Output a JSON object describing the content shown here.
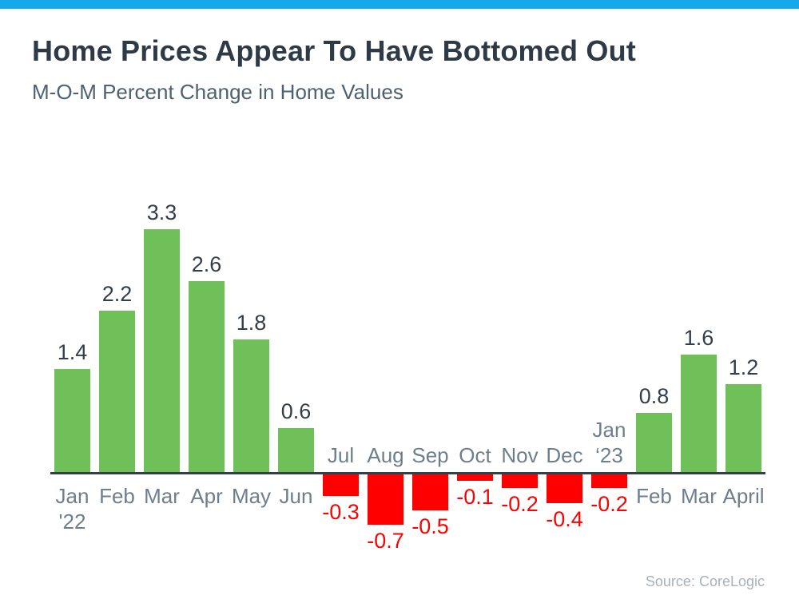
{
  "chart_data": {
    "type": "bar",
    "title": "Home Prices Appear To Have Bottomed Out",
    "subtitle": "M-O-M Percent Change in Home Values",
    "categories": [
      "Jan '22",
      "Feb",
      "Mar",
      "Apr",
      "May",
      "Jun",
      "Jul",
      "Aug",
      "Sep",
      "Oct",
      "Nov",
      "Dec",
      "Jan '23",
      "Feb",
      "Mar",
      "April"
    ],
    "tick_lines": [
      [
        "Jan",
        "'22"
      ],
      [
        "Feb"
      ],
      [
        "Mar"
      ],
      [
        "Apr"
      ],
      [
        "May"
      ],
      [
        "Jun"
      ],
      [
        "Jul"
      ],
      [
        "Aug"
      ],
      [
        "Sep"
      ],
      [
        "Oct"
      ],
      [
        "Nov"
      ],
      [
        "Dec"
      ],
      [
        "Jan",
        "‘23"
      ],
      [
        "Feb"
      ],
      [
        "Mar"
      ],
      [
        "April"
      ]
    ],
    "values": [
      1.4,
      2.2,
      3.3,
      2.6,
      1.8,
      0.6,
      -0.3,
      -0.7,
      -0.5,
      -0.1,
      -0.2,
      -0.4,
      -0.2,
      0.8,
      1.6,
      1.2
    ],
    "value_labels": [
      "1.4",
      "2.2",
      "3.3",
      "2.6",
      "1.8",
      "0.6",
      "-0.3",
      "-0.7",
      "-0.5",
      "-0.1",
      "-0.2",
      "-0.4",
      "-0.2",
      "0.8",
      "1.6",
      "1.2"
    ],
    "ylim": [
      -0.7,
      3.3
    ],
    "grid": "off",
    "legend": "none",
    "source": "Source: CoreLogic"
  },
  "colors": {
    "accent_bar": "#15a9ec",
    "positive": "#70c05a",
    "negative": "#ff0000",
    "title": "#2e3b47",
    "subtitle": "#4e6170",
    "tick": "#6e7e8d",
    "value_label": "#333e48",
    "axis": "#333f4b",
    "source": "#a8b1b9"
  }
}
